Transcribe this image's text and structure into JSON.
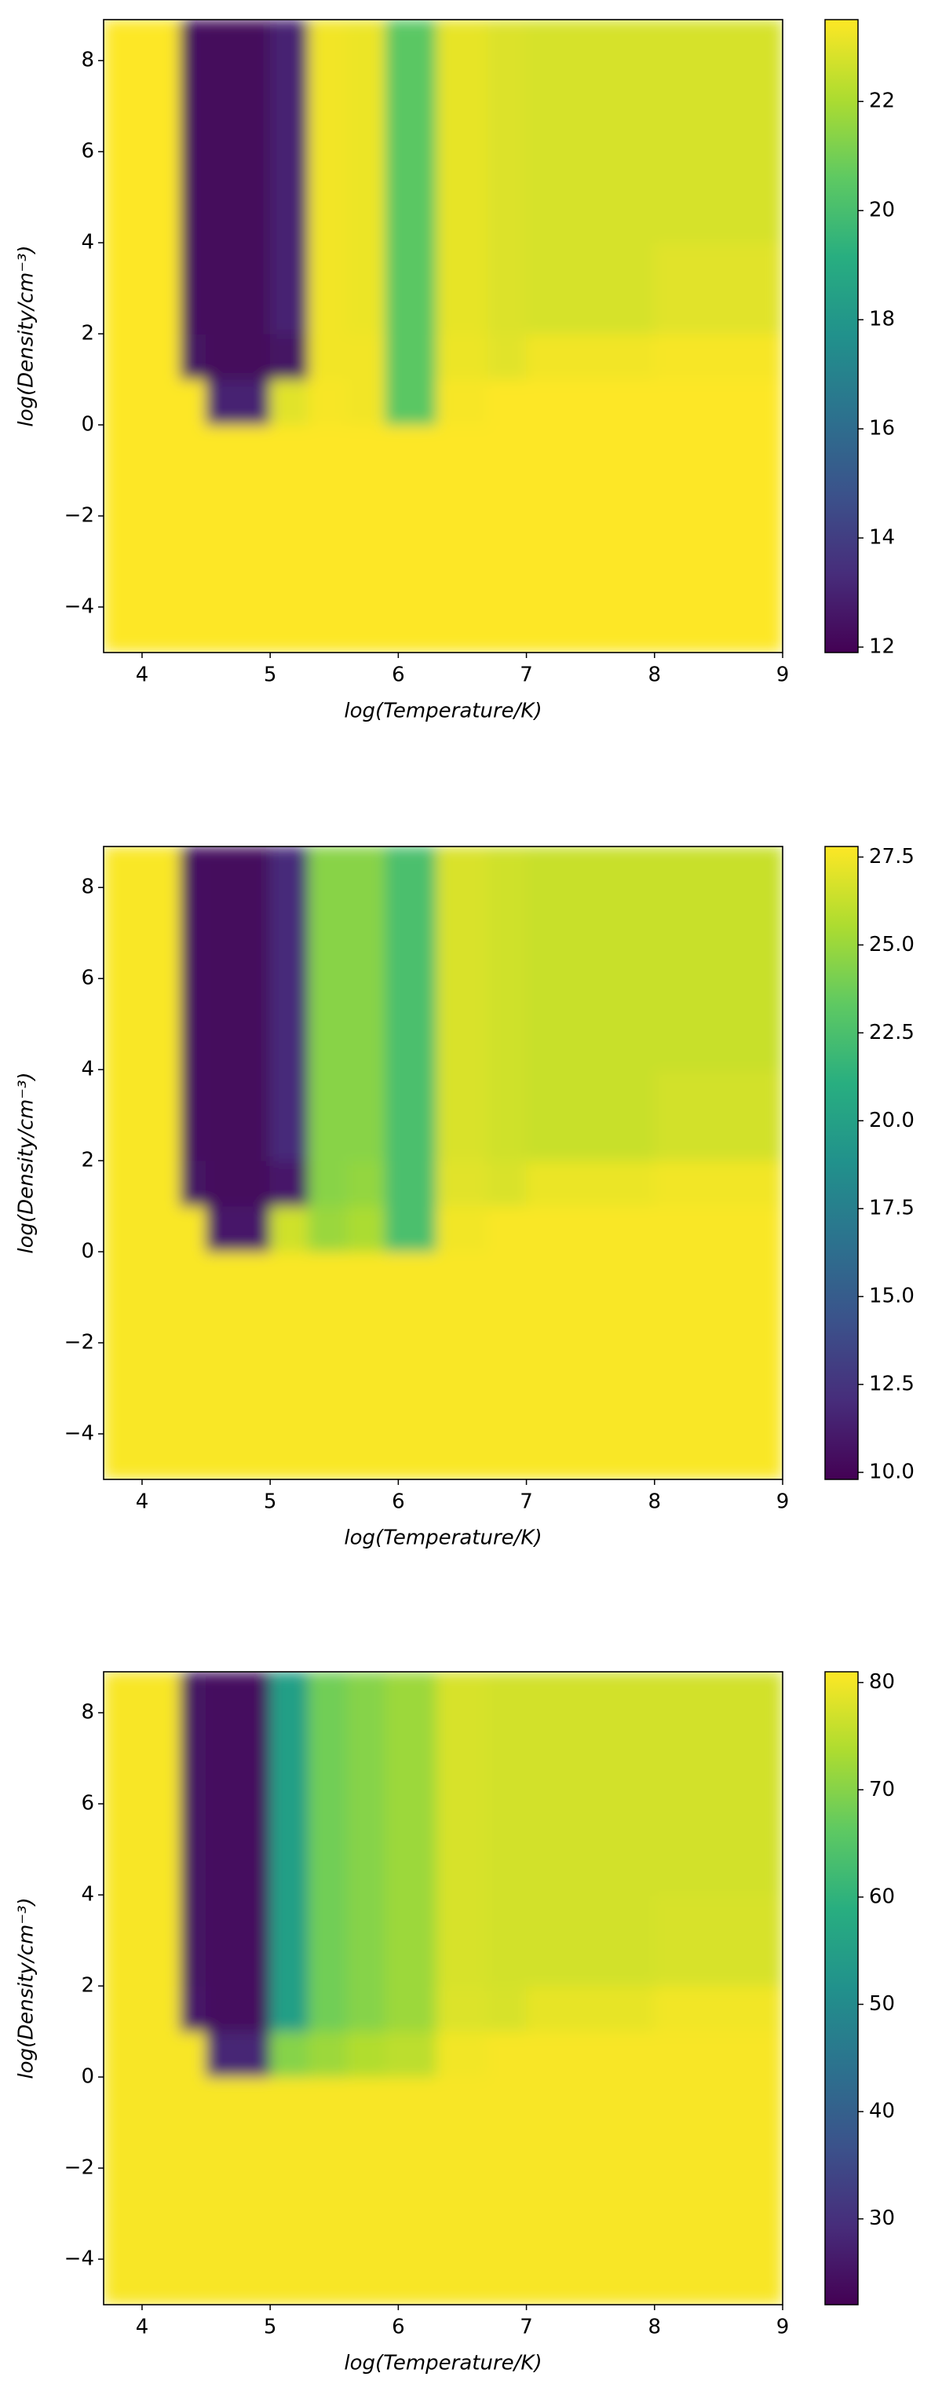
{
  "chart_data": [
    {
      "type": "heatmap",
      "x_label": "log(Temperature/K)",
      "y_label": "log(Density/cm⁻³)",
      "colormap": "viridis",
      "xlim": [
        3.7,
        9
      ],
      "ylim": [
        -5,
        8.9
      ],
      "xticks": [
        4,
        5,
        6,
        7,
        8,
        9
      ],
      "yticks": [
        {
          "value": -4,
          "label": "−4"
        },
        {
          "value": -2,
          "label": "−2"
        },
        0,
        2,
        4,
        6,
        8
      ],
      "x_edges": [
        3.7,
        4.3,
        4.5,
        5.0,
        5.3,
        5.6,
        5.9,
        6.3,
        6.7,
        7.0,
        8.0,
        9.0
      ],
      "y_edges": [
        -5,
        0,
        1,
        2,
        4,
        6,
        8.9
      ],
      "clim": [
        11.9,
        23.5
      ],
      "cticks": [
        12,
        14,
        16,
        18,
        20,
        22
      ],
      "z": [
        [
          23.5,
          23.5,
          23.5,
          23.5,
          23.5,
          23.5,
          23.5,
          23.5,
          23.5,
          23.5,
          23.5
        ],
        [
          23.5,
          23.5,
          13,
          23,
          23.4,
          23.3,
          20.5,
          23.4,
          23.5,
          23.5,
          23.5
        ],
        [
          23.5,
          12.5,
          12.2,
          12.5,
          23.3,
          23.3,
          20.5,
          23.2,
          23,
          23.3,
          23.4
        ],
        [
          23.5,
          12.3,
          12.2,
          13,
          23.3,
          23.2,
          20.5,
          23.1,
          22.9,
          22.8,
          23
        ],
        [
          23.5,
          12.3,
          12.2,
          13,
          23.3,
          23.2,
          20.5,
          23.1,
          22.9,
          22.8,
          22.8
        ],
        [
          23.5,
          12.3,
          12.2,
          13,
          23.3,
          23.2,
          20.5,
          23.1,
          22.9,
          22.8,
          22.8
        ]
      ]
    },
    {
      "type": "heatmap",
      "x_label": "log(Temperature/K)",
      "y_label": "log(Density/cm⁻³)",
      "colormap": "viridis",
      "xlim": [
        3.7,
        9
      ],
      "ylim": [
        -5,
        8.9
      ],
      "xticks": [
        4,
        5,
        6,
        7,
        8,
        9
      ],
      "yticks": [
        {
          "value": -4,
          "label": "−4"
        },
        {
          "value": -2,
          "label": "−2"
        },
        0,
        2,
        4,
        6,
        8
      ],
      "x_edges": [
        3.7,
        4.3,
        4.5,
        5.0,
        5.3,
        5.6,
        5.9,
        6.3,
        6.7,
        7.0,
        8.0,
        9.0
      ],
      "y_edges": [
        -5,
        0,
        1,
        2,
        4,
        6,
        8.9
      ],
      "clim": [
        9.8,
        27.8
      ],
      "cticks": [
        {
          "value": 10,
          "label": "10.0"
        },
        12.5,
        {
          "value": 15,
          "label": "15.0"
        },
        17.5,
        {
          "value": 20,
          "label": "20.0"
        },
        22.5,
        {
          "value": 25,
          "label": "25.0"
        },
        27.5
      ],
      "z": [
        [
          27.7,
          27.7,
          27.7,
          27.7,
          27.7,
          27.7,
          27.7,
          27.7,
          27.7,
          27.7,
          27.7
        ],
        [
          27.7,
          27.7,
          11,
          26.5,
          25,
          25.5,
          22.5,
          27.5,
          27.7,
          27.7,
          27.7
        ],
        [
          27.7,
          10.8,
          10.3,
          11,
          24.5,
          24.8,
          22.5,
          27,
          26.8,
          27.3,
          27.5
        ],
        [
          27.7,
          10.5,
          10.3,
          12,
          24.5,
          24.5,
          22.5,
          26.8,
          26.5,
          26.3,
          26.6
        ],
        [
          27.7,
          10.5,
          10.3,
          12,
          24.5,
          24.5,
          22.5,
          26.8,
          26.5,
          26.3,
          26.3
        ],
        [
          27.7,
          10.5,
          10.3,
          12,
          24.5,
          24.5,
          22.5,
          26.8,
          26.5,
          26.3,
          26.3
        ]
      ]
    },
    {
      "type": "heatmap",
      "x_label": "log(Temperature/K)",
      "y_label": "log(Density/cm⁻³)",
      "colormap": "viridis",
      "xlim": [
        3.7,
        9
      ],
      "ylim": [
        -5,
        8.9
      ],
      "xticks": [
        4,
        5,
        6,
        7,
        8,
        9
      ],
      "yticks": [
        {
          "value": -4,
          "label": "−4"
        },
        {
          "value": -2,
          "label": "−2"
        },
        0,
        2,
        4,
        6,
        8
      ],
      "x_edges": [
        3.7,
        4.3,
        4.5,
        5.0,
        5.3,
        5.6,
        5.9,
        6.3,
        6.7,
        7.0,
        8.0,
        9.0
      ],
      "y_edges": [
        -5,
        0,
        1,
        2,
        4,
        6,
        8.9
      ],
      "clim": [
        22,
        81
      ],
      "cticks": [
        30,
        40,
        50,
        60,
        70,
        80
      ],
      "z": [
        [
          80.5,
          80.5,
          80.5,
          80.5,
          80.5,
          80.5,
          80.5,
          80.5,
          80.5,
          80.5,
          80.5
        ],
        [
          80.5,
          80.5,
          28,
          70,
          72,
          74,
          75,
          80,
          80.5,
          80.5,
          80.5
        ],
        [
          80.5,
          26,
          24,
          55,
          68,
          70,
          72,
          78,
          77.5,
          79,
          80
        ],
        [
          80.5,
          25,
          24,
          55,
          68,
          70,
          72,
          77.5,
          77,
          77,
          77.5
        ],
        [
          80.5,
          25,
          24,
          55,
          68,
          70,
          72,
          77.5,
          77,
          77,
          77
        ],
        [
          80.5,
          25,
          24,
          55,
          68,
          70,
          72,
          77.5,
          77,
          77,
          77
        ]
      ]
    }
  ]
}
